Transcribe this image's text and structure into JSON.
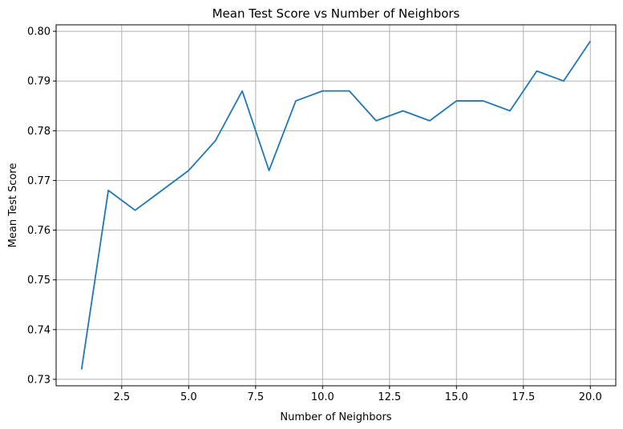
{
  "chart_data": {
    "type": "line",
    "title": "Mean Test Score vs Number of Neighbors",
    "xlabel": "Number of Neighbors",
    "ylabel": "Mean Test Score",
    "x": [
      1,
      2,
      3,
      4,
      5,
      6,
      7,
      8,
      9,
      10,
      11,
      12,
      13,
      14,
      15,
      16,
      17,
      18,
      19,
      20
    ],
    "series": [
      {
        "values": [
          0.732,
          0.768,
          0.764,
          0.768,
          0.772,
          0.778,
          0.788,
          0.772,
          0.786,
          0.788,
          0.788,
          0.782,
          0.784,
          0.782,
          0.786,
          0.786,
          0.784,
          0.792,
          0.79,
          0.798
        ],
        "color": "#1f77b4"
      }
    ],
    "xlim": [
      0.05,
      20.95
    ],
    "ylim": [
      0.7287,
      0.8013
    ],
    "xticks": [
      2.5,
      5.0,
      7.5,
      10.0,
      12.5,
      15.0,
      17.5,
      20.0
    ],
    "xtick_labels": [
      "2.5",
      "5.0",
      "7.5",
      "10.0",
      "12.5",
      "15.0",
      "17.5",
      "20.0"
    ],
    "yticks": [
      0.73,
      0.74,
      0.75,
      0.76,
      0.77,
      0.78,
      0.79,
      0.8
    ],
    "ytick_labels": [
      "0.73",
      "0.74",
      "0.75",
      "0.76",
      "0.77",
      "0.78",
      "0.79",
      "0.80"
    ],
    "grid": true,
    "grid_color": "#b0b0b0"
  }
}
